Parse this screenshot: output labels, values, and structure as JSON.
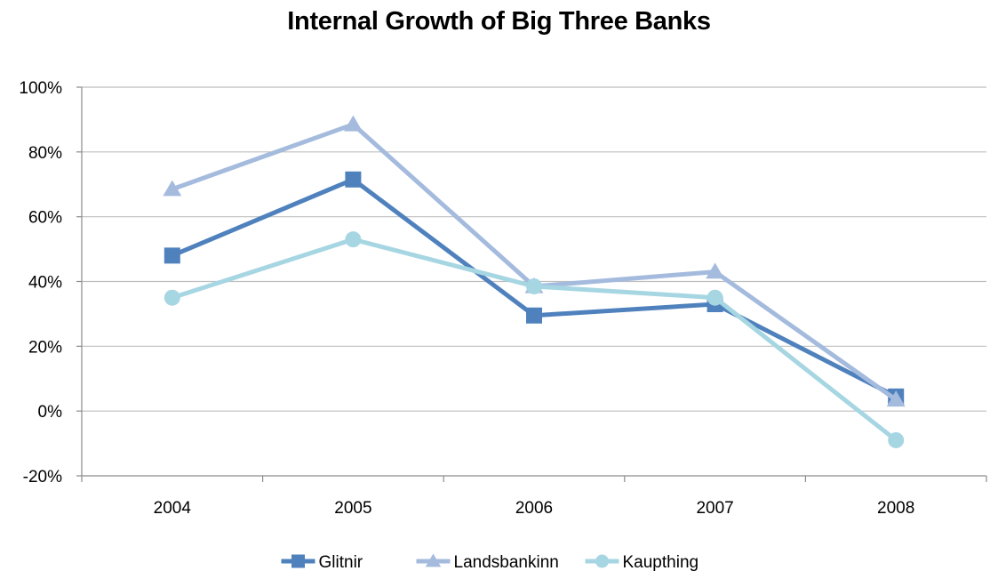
{
  "chart_data": {
    "type": "line",
    "title": "Internal Growth of Big Three Banks",
    "xlabel": "",
    "ylabel": "",
    "x": [
      "2004",
      "2005",
      "2006",
      "2007",
      "2008"
    ],
    "y_ticks": [
      "100%",
      "80%",
      "60%",
      "40%",
      "20%",
      "0%",
      "-20%"
    ],
    "y_tick_values": [
      100,
      80,
      60,
      40,
      20,
      0,
      -20
    ],
    "ylim": [
      -20,
      100
    ],
    "grid": true,
    "legend_position": "bottom",
    "series": [
      {
        "name": "Glitnir",
        "marker": "square",
        "color": "#4f81bd",
        "values": [
          48,
          71.5,
          29.5,
          33,
          4.5
        ]
      },
      {
        "name": "Landsbankinn",
        "marker": "triangle",
        "color": "#a4bbde",
        "values": [
          68.5,
          88.5,
          38.5,
          43,
          3.5
        ]
      },
      {
        "name": "Kaupthing",
        "marker": "circle",
        "color": "#a7d6e3",
        "values": [
          35,
          53,
          38.5,
          35,
          -9
        ]
      }
    ]
  }
}
